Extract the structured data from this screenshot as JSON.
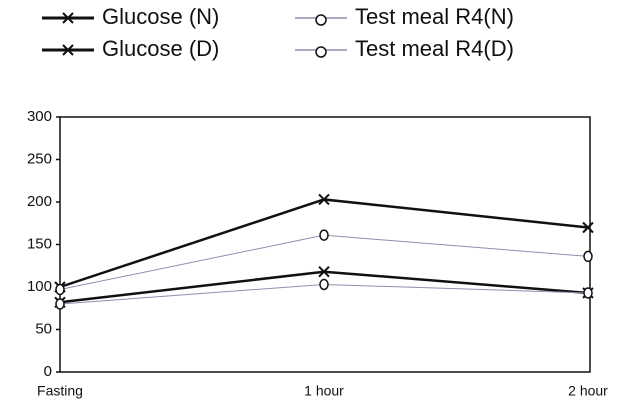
{
  "chart_data": {
    "type": "line",
    "categories": [
      "Fasting",
      "1 hour",
      "2 hour"
    ],
    "series": [
      {
        "name": "Glucose (N)",
        "color": "#111111",
        "marker": "x",
        "values": [
          82,
          118,
          93
        ]
      },
      {
        "name": "Glucose (D)",
        "color": "#111111",
        "marker": "x",
        "values": [
          100,
          203,
          170
        ]
      },
      {
        "name": "Test meal R4(N)",
        "color": "#8a8fb0",
        "marker": "o",
        "values": [
          80,
          103,
          93
        ]
      },
      {
        "name": "Test meal R4(D)",
        "color": "#8a8fb0",
        "marker": "o",
        "values": [
          97,
          161,
          136
        ]
      }
    ],
    "ylim": [
      0,
      300
    ],
    "yticks": [
      0,
      50,
      100,
      150,
      200,
      250,
      300
    ]
  }
}
